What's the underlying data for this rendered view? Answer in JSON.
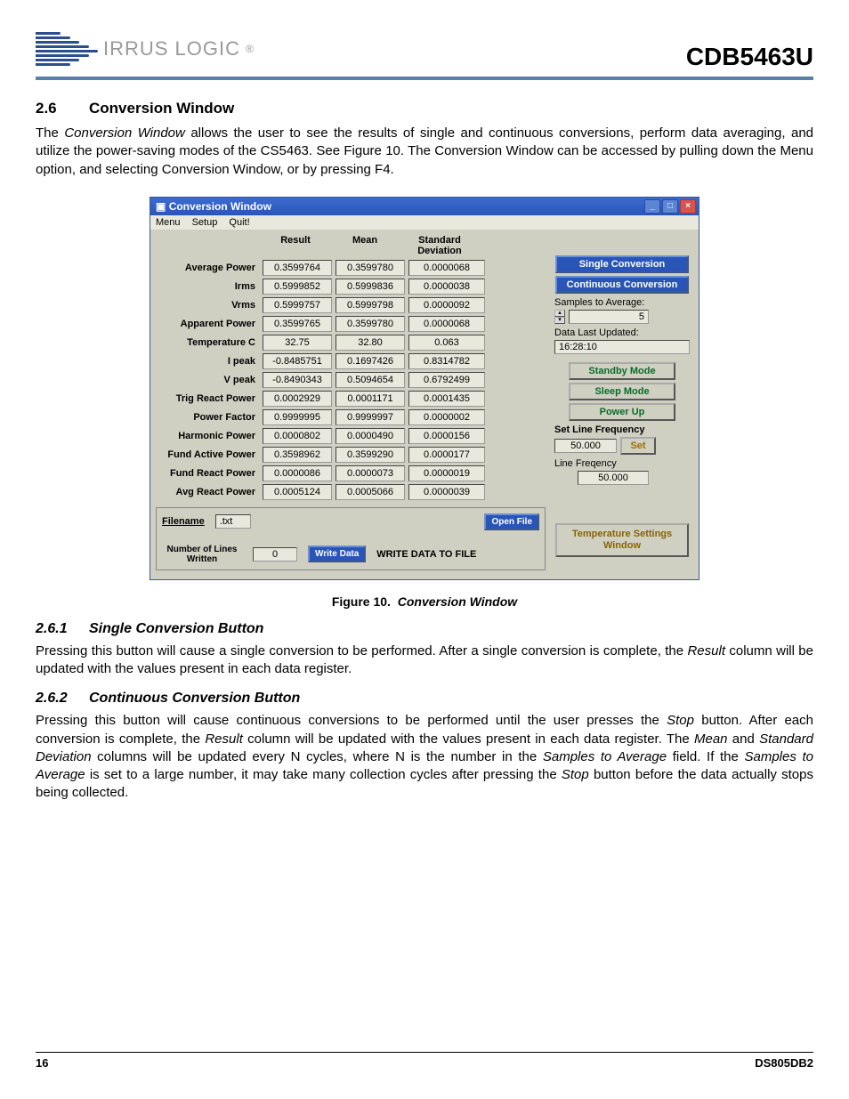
{
  "header": {
    "brand": "IRRUS LOGIC",
    "doc_id": "CDB5463U"
  },
  "section": {
    "num": "2.6",
    "title": "Conversion Window"
  },
  "para1": "The Conversion Window allows the user to see the results of single and continuous conversions, perform data averaging, and utilize the power-saving modes of the CS5463. See Figure 10. The Conversion Window can be accessed by pulling down the Menu option, and selecting Conversion Window, or by pressing F4.",
  "win": {
    "title": "Conversion Window",
    "menus": [
      "Menu",
      "Setup",
      "Quit!"
    ],
    "col_headers": [
      "Result",
      "Mean",
      "Standard Deviation"
    ],
    "rows": [
      {
        "label": "Average Power",
        "r": "0.3599764",
        "m": "0.3599780",
        "s": "0.0000068"
      },
      {
        "label": "Irms",
        "r": "0.5999852",
        "m": "0.5999836",
        "s": "0.0000038"
      },
      {
        "label": "Vrms",
        "r": "0.5999757",
        "m": "0.5999798",
        "s": "0.0000092"
      },
      {
        "label": "Apparent Power",
        "r": "0.3599765",
        "m": "0.3599780",
        "s": "0.0000068"
      },
      {
        "label": "Temperature C",
        "r": "32.75",
        "m": "32.80",
        "s": "0.063"
      },
      {
        "label": "I peak",
        "r": "-0.8485751",
        "m": "0.1697426",
        "s": "0.8314782"
      },
      {
        "label": "V peak",
        "r": "-0.8490343",
        "m": "0.5094654",
        "s": "0.6792499"
      },
      {
        "label": "Trig React Power",
        "r": "0.0002929",
        "m": "0.0001171",
        "s": "0.0001435"
      },
      {
        "label": "Power Factor",
        "r": "0.9999995",
        "m": "0.9999997",
        "s": "0.0000002"
      },
      {
        "label": "Harmonic Power",
        "r": "0.0000802",
        "m": "0.0000490",
        "s": "0.0000156"
      },
      {
        "label": "Fund Active Power",
        "r": "0.3598962",
        "m": "0.3599290",
        "s": "0.0000177"
      },
      {
        "label": "Fund React Power",
        "r": "0.0000086",
        "m": "0.0000073",
        "s": "0.0000019"
      },
      {
        "label": "Avg React Power",
        "r": "0.0005124",
        "m": "0.0005066",
        "s": "0.0000039"
      }
    ],
    "right": {
      "single_btn": "Single Conversion",
      "cont_btn": "Continuous Conversion",
      "samples_label": "Samples to Average:",
      "samples_val": "5",
      "updated_label": "Data Last Updated:",
      "updated_val": "16:28:10",
      "standby": "Standby Mode",
      "sleep": "Sleep Mode",
      "powerup": "Power Up",
      "setfreq_label": "Set Line Frequency",
      "setfreq_val": "50.000",
      "set_btn": "Set",
      "linefreq_label": "Line Freqency",
      "linefreq_val": "50.000",
      "temp_btn": "Temperature Settings Window"
    },
    "bottom": {
      "filename_label": "Filename",
      "filename_val": ".txt",
      "open_btn": "Open File",
      "lines_label": "Number of Lines Written",
      "lines_val": "0",
      "write_btn": "Write Data",
      "write_label": "WRITE DATA TO FILE"
    }
  },
  "fig": {
    "prefix": "Figure 10.",
    "title": "Conversion Window"
  },
  "sub1": {
    "num": "2.6.1",
    "title": "Single Conversion Button",
    "text": "Pressing this button will cause a single conversion to be performed. After a single conversion is complete, the Result column will be updated with the values present in each data register."
  },
  "sub2": {
    "num": "2.6.2",
    "title": "Continuous Conversion Button",
    "text": "Pressing this button will cause continuous conversions to be performed until the user presses the Stop button. After each conversion is complete, the Result column will be updated with the values present in each data register. The Mean and Standard Deviation columns will be updated every N cycles, where N is the number in the Samples to Average field. If the Samples to Average is set to a large number, it may take many collection cycles after pressing the Stop button before the data actually stops being collected."
  },
  "footer": {
    "page": "16",
    "doc": "DS805DB2"
  }
}
